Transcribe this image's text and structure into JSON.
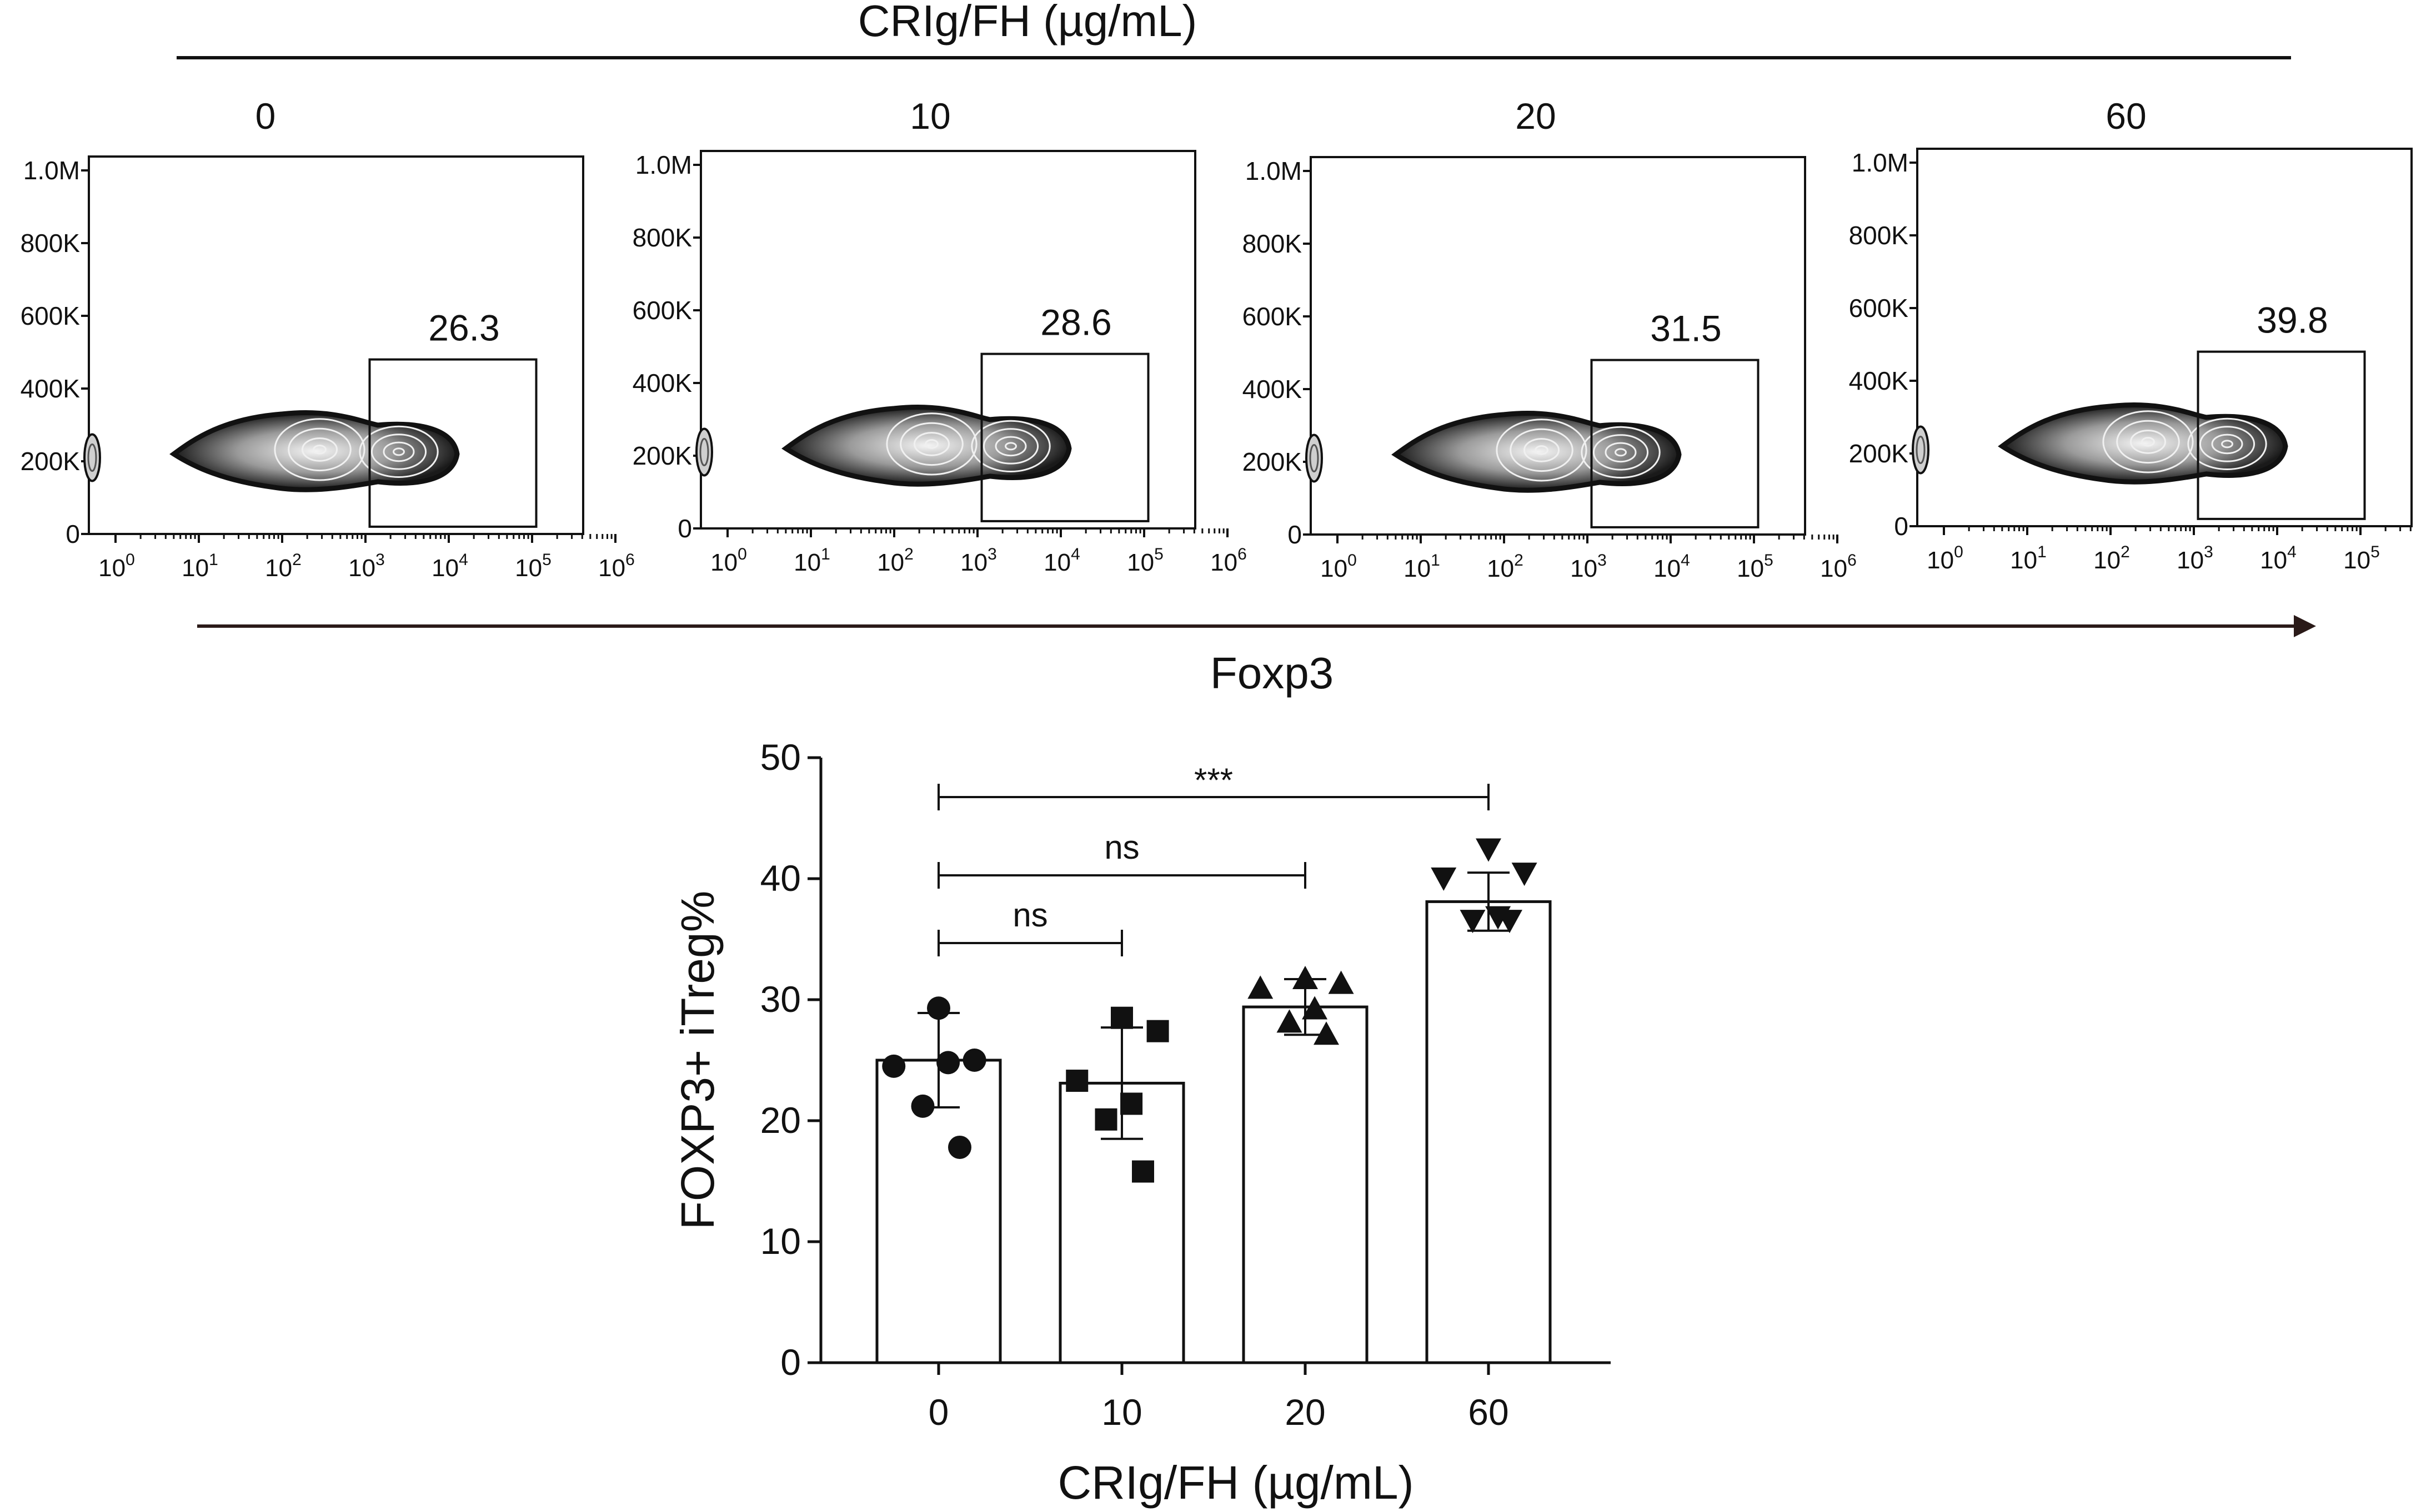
{
  "header": {
    "title": "CRIg/FH  (µg/mL)"
  },
  "flow": {
    "x_axis_title": "Foxp3",
    "y_ticks": [
      "0",
      "200K",
      "400K",
      "600K",
      "800K",
      "1.0M"
    ],
    "x_tick_bases": [
      "10",
      "10",
      "10",
      "10",
      "10",
      "10",
      "10"
    ],
    "x_tick_exponents": [
      "0",
      "1",
      "2",
      "3",
      "4",
      "5",
      "6"
    ],
    "panels": [
      {
        "label": "0",
        "gate_value": "26.3"
      },
      {
        "label": "10",
        "gate_value": "28.6"
      },
      {
        "label": "20",
        "gate_value": "31.5"
      },
      {
        "label": "60",
        "gate_value": "39.8"
      }
    ]
  },
  "colors": {
    "ink": "#111111",
    "bar_fill": "#ffffff",
    "arrow": "#2a1a18"
  },
  "chart_data": {
    "type": "bar",
    "categories": [
      "0",
      "10",
      "20",
      "60"
    ],
    "values": [
      25.0,
      23.1,
      29.4,
      38.1
    ],
    "error_sd": [
      3.9,
      4.6,
      2.3,
      2.4
    ],
    "points": [
      [
        29.3,
        25.0,
        24.5,
        24.8,
        21.2,
        17.8
      ],
      [
        28.5,
        27.4,
        23.3,
        21.4,
        20.1,
        15.8
      ],
      [
        31.7,
        31.3,
        30.9,
        29.2,
        28.1,
        27.1
      ],
      [
        42.5,
        40.5,
        40.1,
        36.9,
        36.6,
        36.6
      ]
    ],
    "markers": [
      "circle",
      "square",
      "triangle-up",
      "triangle-down"
    ],
    "significance": [
      {
        "from": "0",
        "to": "10",
        "label": "ns"
      },
      {
        "from": "0",
        "to": "20",
        "label": "ns"
      },
      {
        "from": "0",
        "to": "60",
        "label": "***"
      }
    ],
    "xlabel": "CRIg/FH  (µg/mL)",
    "ylabel": "FOXP3+ iTreg%",
    "ylim": [
      0,
      50
    ],
    "yticks": [
      "0",
      "10",
      "20",
      "30",
      "40",
      "50"
    ]
  }
}
